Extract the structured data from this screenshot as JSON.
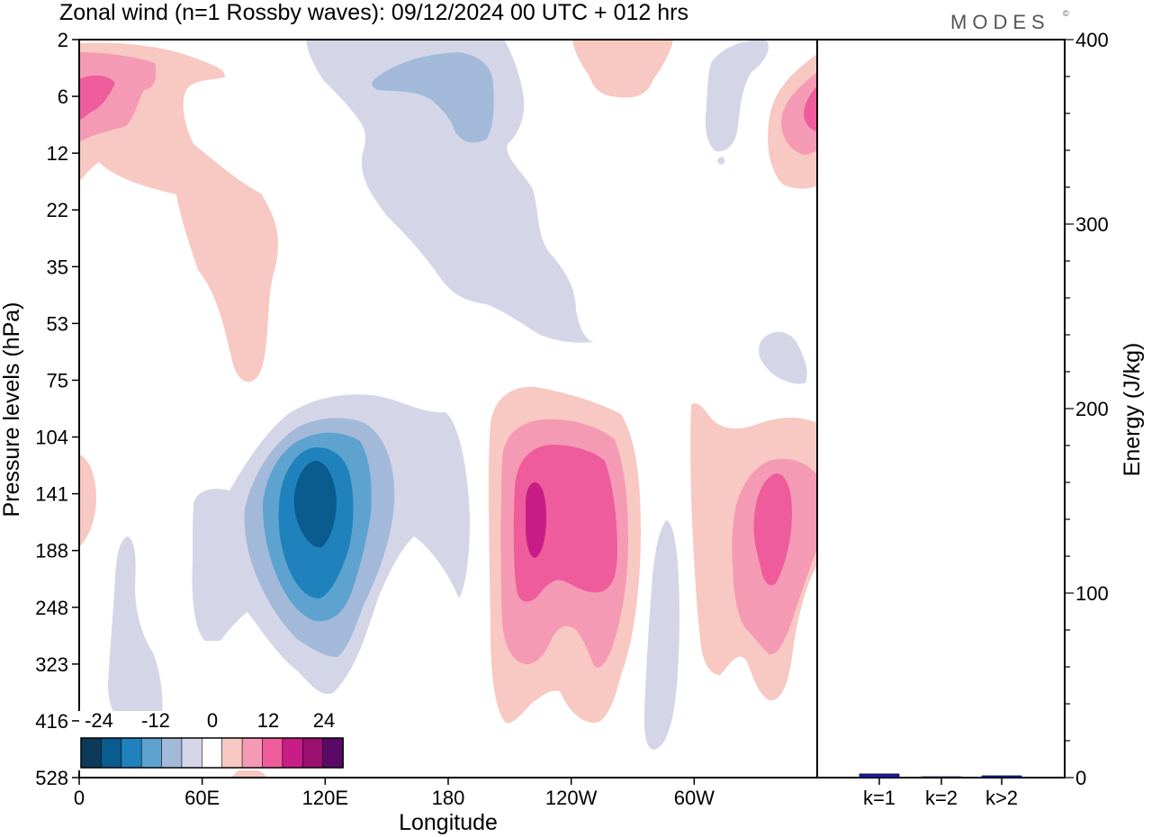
{
  "title": "Zonal wind (n=1 Rossby waves):  09/12/2024  00 UTC  + 012 hrs",
  "brand": "MODES",
  "brand_mark": "©",
  "colors": {
    "neg4": "#0a5b8e",
    "neg3": "#1f82bd",
    "neg2": "#5ea2cf",
    "neg1": "#a2b9da",
    "neg0": "#d4d6e8",
    "pos0": "#f8c8c2",
    "pos1": "#f59ab4",
    "pos2": "#ee5c9c",
    "pos3": "#c81d87",
    "pos4": "#9b0f6f",
    "pos5": "#5a0a66",
    "neg5": "#0b3a5a",
    "energy_bar": "#1a1aa0"
  },
  "chart_data": [
    {
      "type": "heatmap",
      "title": "Zonal wind (n=1 Rossby waves):  09/12/2024  00 UTC  + 012 hrs",
      "xlabel": "Longitude",
      "ylabel": "Pressure levels (hPa)",
      "x_ticks": [
        "0",
        "60E",
        "120E",
        "180",
        "120W",
        "60W"
      ],
      "x_tick_degrees": [
        0,
        60,
        120,
        180,
        240,
        300
      ],
      "xlim": [
        0,
        360
      ],
      "y_ticks": [
        "2",
        "6",
        "12",
        "22",
        "35",
        "53",
        "75",
        "104",
        "141",
        "188",
        "248",
        "323",
        "416",
        "528"
      ],
      "y_axis": "pressure levels, top to bottom, evenly spaced",
      "colorbar": {
        "labels": [
          "-24",
          "-12",
          "0",
          "12",
          "24"
        ],
        "levels": [
          -30,
          -24,
          -18,
          -12,
          -6,
          -3,
          3,
          6,
          12,
          18,
          24,
          30
        ],
        "colors": [
          "#0b3a5a",
          "#0a5b8e",
          "#1f82bd",
          "#5ea2cf",
          "#a2b9da",
          "#d4d6e8",
          "#ffffff",
          "#f8c8c2",
          "#f59ab4",
          "#ee5c9c",
          "#c81d87",
          "#9b0f6f",
          "#5a0a66"
        ]
      },
      "features": [
        {
          "sign": "negative",
          "center_lon": 118,
          "center_level": "141-188",
          "peak": -24
        },
        {
          "sign": "positive",
          "center_lon": 223,
          "center_level": "141-188",
          "peak": 18
        },
        {
          "sign": "positive",
          "center_lon": 338,
          "center_level": "141-188",
          "peak": 12
        },
        {
          "sign": "positive",
          "center_lon": 5,
          "center_level": "6",
          "peak": 12
        },
        {
          "sign": "positive",
          "center_lon": 357,
          "center_level": "6",
          "peak": 12
        },
        {
          "sign": "negative",
          "center_lon": 182,
          "center_level": "2-12",
          "peak": -6
        }
      ]
    },
    {
      "type": "bar",
      "ylabel": "Energy (J/kg)",
      "categories": [
        "k=1",
        "k=2",
        "k>2"
      ],
      "values": [
        2,
        0.5,
        1
      ],
      "ylim": [
        0,
        400
      ],
      "y_ticks": [
        "0",
        "100",
        "200",
        "300",
        "400"
      ],
      "y_axis_side": "right"
    }
  ]
}
